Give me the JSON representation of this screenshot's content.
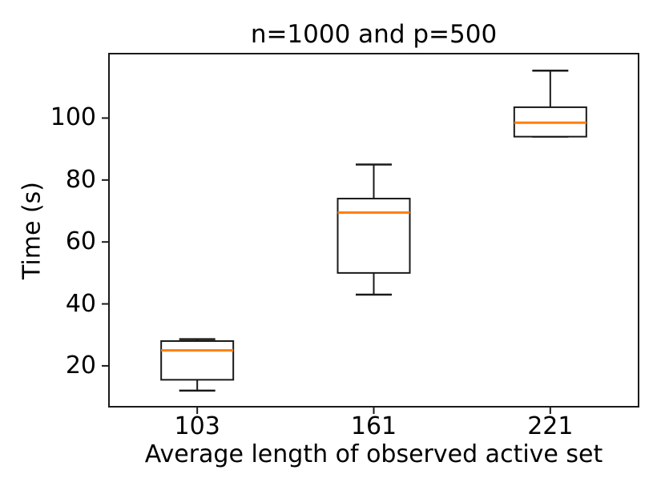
{
  "figure": {
    "background": "#ffffff",
    "text_color": "#000000"
  },
  "chart_data": {
    "type": "boxplot",
    "title": "n=1000 and p=500",
    "xlabel": "Average length of observed active set",
    "ylabel": "Time (s)",
    "categories": [
      "103",
      "161",
      "221"
    ],
    "x_positions": [
      1,
      2,
      3
    ],
    "xlim": [
      0.5,
      3.5
    ],
    "ylim": [
      6.8,
      120.8
    ],
    "y_ticks": [
      20,
      40,
      60,
      80,
      100
    ],
    "grid": false,
    "legend": "none",
    "box_fill": "#ffffff",
    "box_edge_color": "#1a1a1a",
    "median_color": "#ff7f0e",
    "series": [
      {
        "category": "103",
        "position": 1,
        "whisker_low": 12,
        "q1": 15.5,
        "median": 25,
        "q3": 28,
        "whisker_high": 28.6
      },
      {
        "category": "161",
        "position": 2,
        "whisker_low": 43,
        "q1": 50,
        "median": 69.5,
        "q3": 74,
        "whisker_high": 85
      },
      {
        "category": "221",
        "position": 3,
        "whisker_low": 94,
        "q1": 94,
        "median": 98.5,
        "q3": 103.5,
        "whisker_high": 115.3
      }
    ]
  }
}
